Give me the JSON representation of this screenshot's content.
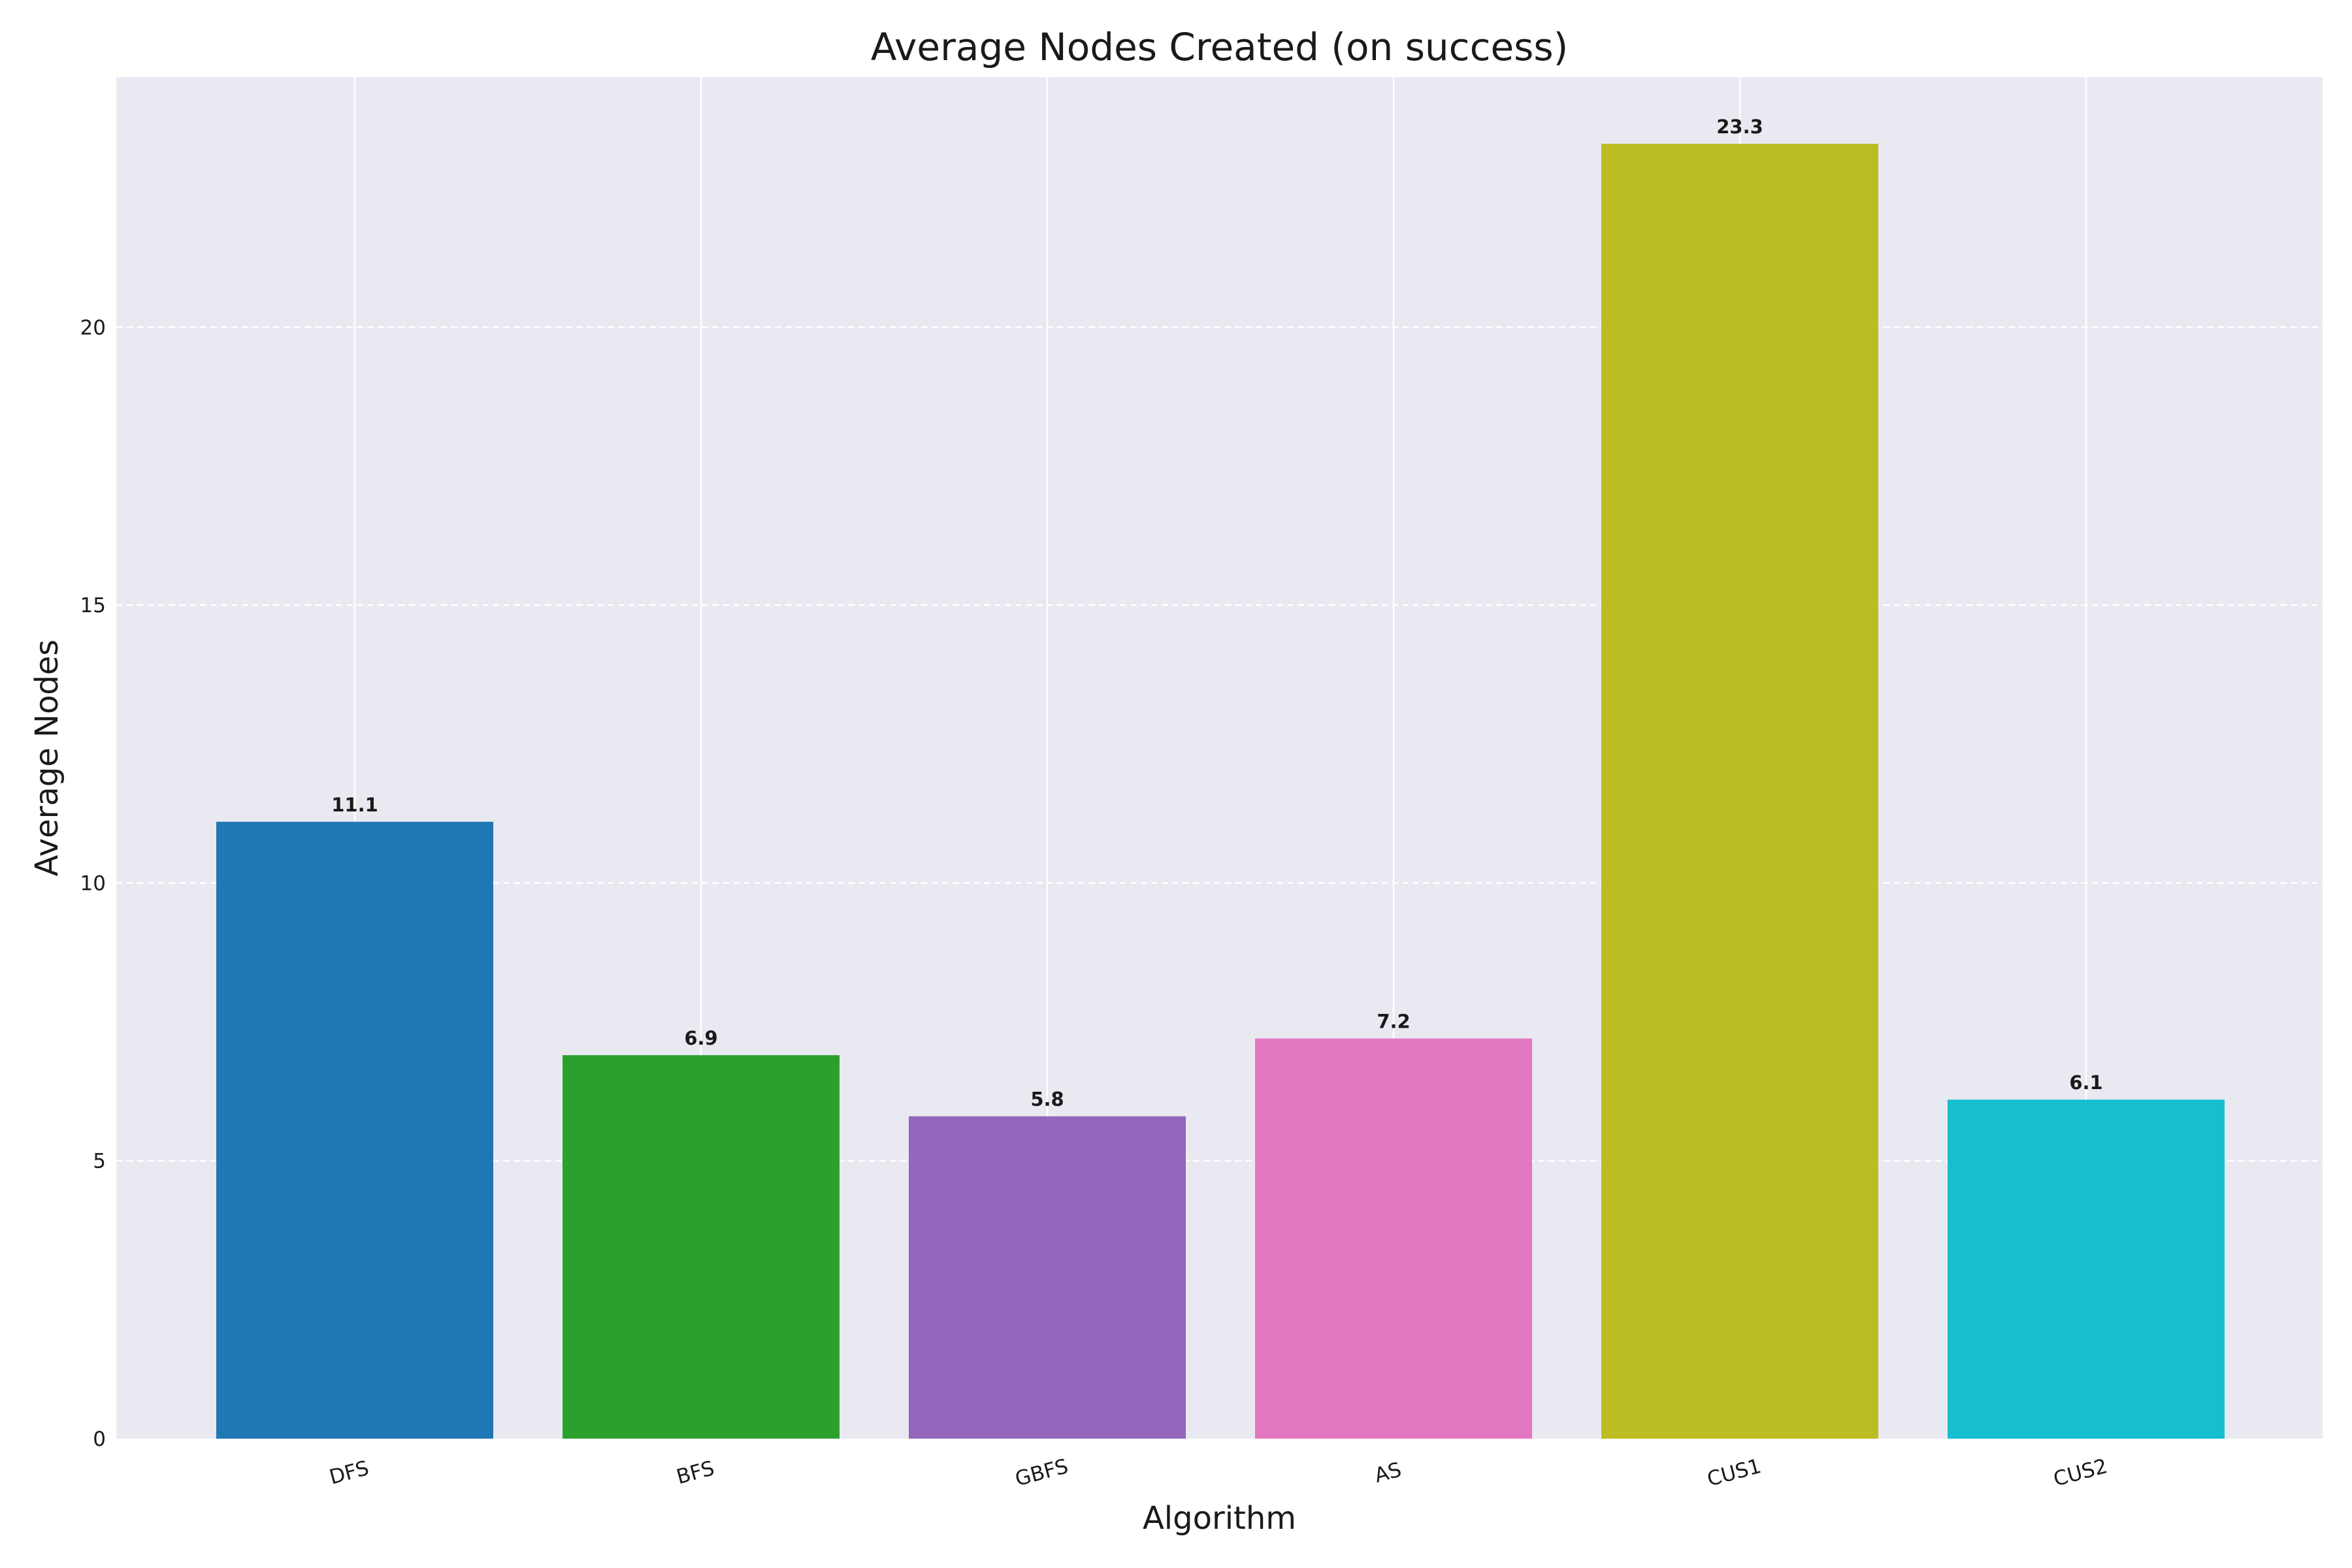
{
  "chart_data": {
    "type": "bar",
    "title": "Average Nodes Created (on success)",
    "xlabel": "Algorithm",
    "ylabel": "Average Nodes",
    "categories": [
      "DFS",
      "BFS",
      "GBFS",
      "AS",
      "CUS1",
      "CUS2"
    ],
    "values": [
      11.1,
      6.9,
      5.8,
      7.2,
      23.3,
      6.1
    ],
    "value_labels": [
      "11.1",
      "6.9",
      "5.8",
      "7.2",
      "23.3",
      "6.1"
    ],
    "colors": [
      "#1f77b4",
      "#2ca02c",
      "#9467bd",
      "#e377c2",
      "#bcbd22",
      "#17becf"
    ],
    "ylim": [
      0,
      24.5
    ],
    "yticks": [
      0,
      5,
      10,
      15,
      20
    ],
    "ytick_labels": [
      "0",
      "5",
      "10",
      "15",
      "20"
    ],
    "grid": true,
    "background_color": "#e9e9f1",
    "xtick_rotation_deg": 15
  }
}
